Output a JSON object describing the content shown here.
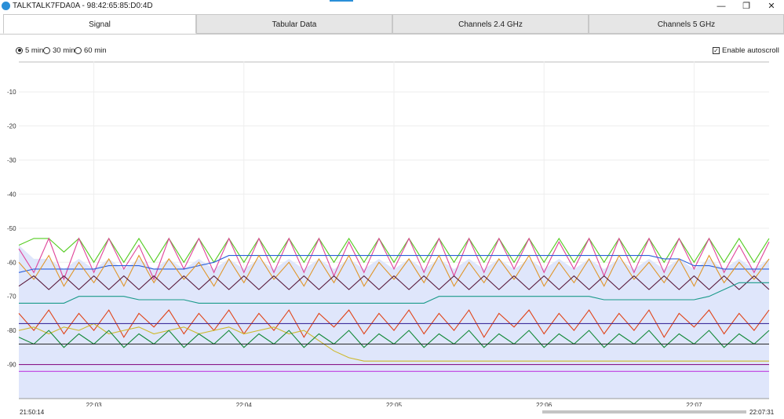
{
  "window": {
    "title": "TALKTALK7FDA0A - 98:42:65:85:D0:4D",
    "minimize_glyph": "—",
    "restore_glyph": "❐",
    "close_glyph": "✕"
  },
  "tabs": [
    "Signal",
    "Tabular Data",
    "Channels 2.4 GHz",
    "Channels 5 GHz"
  ],
  "active_tab": "Signal",
  "range_options": [
    "5 min",
    "30 min",
    "60 min"
  ],
  "selected_range": "5 min",
  "autoscroll": {
    "label": "Enable autoscroll",
    "checked": true,
    "check_glyph": "✓"
  },
  "timeline": {
    "start": "21:50:14",
    "end": "22:07:31"
  },
  "chart_data": {
    "type": "line",
    "ylim": [
      -100,
      -1
    ],
    "y_ticks": [
      -10,
      -20,
      -30,
      -40,
      -50,
      -60,
      -70,
      -80,
      -90
    ],
    "x_ticks": [
      "22:03",
      "22:04",
      "22:05",
      "22:06",
      "22:07"
    ],
    "x_tick_minutes": [
      3,
      4,
      5,
      6,
      7
    ],
    "x_range_minutes": [
      2.5,
      7.5
    ],
    "grid": true,
    "fill_color": "#dfe6fb",
    "series": [
      {
        "color": "#55cc22",
        "values": [
          -55,
          -53,
          -53,
          -57,
          -53,
          -60,
          -53,
          -60,
          -53,
          -60,
          -53,
          -60,
          -53,
          -60,
          -53,
          -60,
          -53,
          -60,
          -53,
          -60,
          -53,
          -60,
          -53,
          -60,
          -53,
          -60,
          -53,
          -60,
          -53,
          -60,
          -53,
          -60,
          -53,
          -60,
          -53,
          -60,
          -53,
          -60,
          -53,
          -60,
          -53,
          -60,
          -53,
          -60,
          -53,
          -60,
          -53,
          -60,
          -53,
          -60,
          -53
        ]
      },
      {
        "color": "#e0449a",
        "values": [
          -56,
          -63,
          -53,
          -65,
          -53,
          -63,
          -53,
          -62,
          -55,
          -65,
          -53,
          -62,
          -53,
          -63,
          -53,
          -63,
          -53,
          -63,
          -53,
          -63,
          -53,
          -64,
          -54,
          -63,
          -53,
          -62,
          -53,
          -63,
          -53,
          -64,
          -53,
          -63,
          -53,
          -62,
          -53,
          -63,
          -54,
          -62,
          -53,
          -64,
          -53,
          -63,
          -53,
          -63,
          -53,
          -62,
          -53,
          -63,
          -55,
          -63,
          -54
        ]
      },
      {
        "color": "#2b5fd9",
        "values": [
          -63,
          -62,
          -62,
          -62,
          -62,
          -62,
          -61,
          -61,
          -61,
          -62,
          -62,
          -62,
          -61,
          -60,
          -58,
          -58,
          -58,
          -58,
          -58,
          -58,
          -58,
          -58,
          -58,
          -58,
          -58,
          -58,
          -58,
          -58,
          -58,
          -58,
          -58,
          -58,
          -58,
          -58,
          -58,
          -58,
          -58,
          -58,
          -58,
          -58,
          -58,
          -58,
          -58,
          -59,
          -59,
          -61,
          -61,
          -62,
          -62,
          -62,
          -62
        ]
      },
      {
        "color": "#e0962a",
        "values": [
          -60,
          -65,
          -58,
          -67,
          -60,
          -66,
          -59,
          -67,
          -58,
          -66,
          -59,
          -65,
          -60,
          -67,
          -59,
          -66,
          -58,
          -65,
          -60,
          -67,
          -59,
          -66,
          -58,
          -67,
          -60,
          -65,
          -59,
          -66,
          -58,
          -67,
          -60,
          -66,
          -59,
          -65,
          -58,
          -67,
          -60,
          -66,
          -59,
          -67,
          -58,
          -65,
          -60,
          -66,
          -59,
          -67,
          -58,
          -66,
          -60,
          -65,
          -59
        ]
      },
      {
        "color": "#5a1a3c",
        "values": [
          -67,
          -64,
          -68,
          -64,
          -68,
          -64,
          -68,
          -64,
          -68,
          -64,
          -68,
          -64,
          -68,
          -64,
          -68,
          -64,
          -68,
          -64,
          -68,
          -64,
          -68,
          -64,
          -68,
          -64,
          -68,
          -64,
          -68,
          -64,
          -68,
          -64,
          -68,
          -64,
          -68,
          -64,
          -68,
          -64,
          -68,
          -64,
          -68,
          -64,
          -68,
          -64,
          -68,
          -64,
          -68,
          -64,
          -68,
          -64,
          -68,
          -64,
          -68
        ]
      },
      {
        "color": "#1a9a8a",
        "values": [
          -72,
          -72,
          -72,
          -72,
          -70,
          -70,
          -70,
          -70,
          -71,
          -71,
          -71,
          -71,
          -72,
          -72,
          -72,
          -72,
          -72,
          -72,
          -72,
          -72,
          -72,
          -72,
          -72,
          -72,
          -72,
          -72,
          -72,
          -72,
          -70,
          -70,
          -70,
          -70,
          -70,
          -70,
          -70,
          -70,
          -70,
          -70,
          -70,
          -71,
          -71,
          -71,
          -71,
          -71,
          -71,
          -71,
          -70,
          -68,
          -66,
          -66,
          -66
        ]
      },
      {
        "color": "#e0441a",
        "values": [
          -75,
          -80,
          -74,
          -81,
          -75,
          -80,
          -74,
          -82,
          -75,
          -79,
          -74,
          -81,
          -75,
          -80,
          -74,
          -81,
          -75,
          -80,
          -74,
          -82,
          -75,
          -79,
          -74,
          -81,
          -75,
          -80,
          -74,
          -81,
          -75,
          -80,
          -74,
          -82,
          -75,
          -79,
          -74,
          -81,
          -75,
          -80,
          -74,
          -81,
          -75,
          -80,
          -74,
          -82,
          -75,
          -79,
          -74,
          -81,
          -75,
          -80,
          -74
        ]
      },
      {
        "color": "#cdb82a",
        "values": [
          -80,
          -79,
          -81,
          -79,
          -80,
          -78,
          -81,
          -80,
          -79,
          -81,
          -80,
          -79,
          -81,
          -80,
          -79,
          -81,
          -80,
          -79,
          -81,
          -80,
          -83,
          -86,
          -88,
          -89,
          -89,
          -89,
          -89,
          -89,
          -89,
          -89,
          -89,
          -89,
          -89,
          -89,
          -89,
          -89,
          -89,
          -89,
          -89,
          -89,
          -89,
          -89,
          -89,
          -89,
          -89,
          -89,
          -89,
          -89,
          -89,
          -89,
          -89
        ]
      },
      {
        "color": "#158a3a",
        "values": [
          -82,
          -84,
          -80,
          -85,
          -81,
          -84,
          -80,
          -85,
          -81,
          -84,
          -80,
          -85,
          -81,
          -84,
          -80,
          -85,
          -81,
          -84,
          -80,
          -85,
          -81,
          -84,
          -80,
          -85,
          -81,
          -84,
          -80,
          -85,
          -81,
          -84,
          -80,
          -85,
          -81,
          -84,
          -80,
          -85,
          -81,
          -84,
          -80,
          -85,
          -81,
          -84,
          -80,
          -85,
          -81,
          -84,
          -80,
          -85,
          -81,
          -84,
          -80
        ]
      },
      {
        "color": "#3d2f9c",
        "values": [
          -78,
          -78,
          -78,
          -78,
          -78,
          -78,
          -78,
          -78,
          -78,
          -78,
          -78,
          -78,
          -78,
          -78,
          -78,
          -78,
          -78,
          -78,
          -78,
          -78,
          -78,
          -78,
          -78,
          -78,
          -78,
          -78,
          -78,
          -78,
          -78,
          -78,
          -78,
          -78,
          -78,
          -78,
          -78,
          -78,
          -78,
          -78,
          -78,
          -78,
          -78,
          -78,
          -78,
          -78,
          -78,
          -78,
          -78,
          -78,
          -78,
          -78,
          -78
        ]
      },
      {
        "color": "#2a2a2a",
        "values": [
          -84,
          -84,
          -84,
          -84,
          -84,
          -84,
          -84,
          -84,
          -84,
          -84,
          -84,
          -84,
          -84,
          -84,
          -84,
          -84,
          -84,
          -84,
          -84,
          -84,
          -84,
          -84,
          -84,
          -84,
          -84,
          -84,
          -84,
          -84,
          -84,
          -84,
          -84,
          -84,
          -84,
          -84,
          -84,
          -84,
          -84,
          -84,
          -84,
          -84,
          -84,
          -84,
          -84,
          -84,
          -84,
          -84,
          -84,
          -84,
          -84,
          -84,
          -84
        ]
      },
      {
        "color": "#8a1a8a",
        "values": [
          -90,
          -90,
          -90,
          -90,
          -90,
          -90,
          -90,
          -90,
          -90,
          -90,
          -90,
          -90,
          -90,
          -90,
          -90,
          -90,
          -90,
          -90,
          -90,
          -90,
          -90,
          -90,
          -90,
          -90,
          -90,
          -90,
          -90,
          -90,
          -90,
          -90,
          -90,
          -90,
          -90,
          -90,
          -90,
          -90,
          -90,
          -90,
          -90,
          -90,
          -90,
          -90,
          -90,
          -90,
          -90,
          -90,
          -90,
          -90,
          -90,
          -90,
          -90
        ]
      },
      {
        "color": "#c040e0",
        "values": [
          -92,
          -92,
          -92,
          -92,
          -92,
          -92,
          -92,
          -92,
          -92,
          -92,
          -92,
          -92,
          -92,
          -92,
          -92,
          -92,
          -92,
          -92,
          -92,
          -92,
          -92,
          -92,
          -92,
          -92,
          -92,
          -92,
          -92,
          -92,
          -92,
          -92,
          -92,
          -92,
          -92,
          -92,
          -92,
          -92,
          -92,
          -92,
          -92,
          -92,
          -92,
          -92,
          -92,
          -92,
          -92,
          -92,
          -92,
          -92,
          -92,
          -92,
          -92
        ]
      },
      {
        "color": "#d4206a",
        "values": [
          -100,
          -100,
          -100,
          -100,
          -100,
          -100,
          -100,
          -100,
          -100,
          -100,
          -100,
          -100,
          -100,
          -100,
          -100,
          -100,
          -100,
          -100,
          -100,
          -100,
          -100,
          -100,
          -100,
          -100,
          -100,
          -100,
          -100,
          -100,
          -100,
          -100,
          -100,
          -100,
          -100,
          -100,
          -100,
          -100,
          -100,
          -100,
          -100,
          -100,
          -100,
          -100,
          -100,
          -100,
          -100,
          -100,
          -100,
          -100,
          -100,
          -100,
          -100
        ]
      }
    ]
  }
}
